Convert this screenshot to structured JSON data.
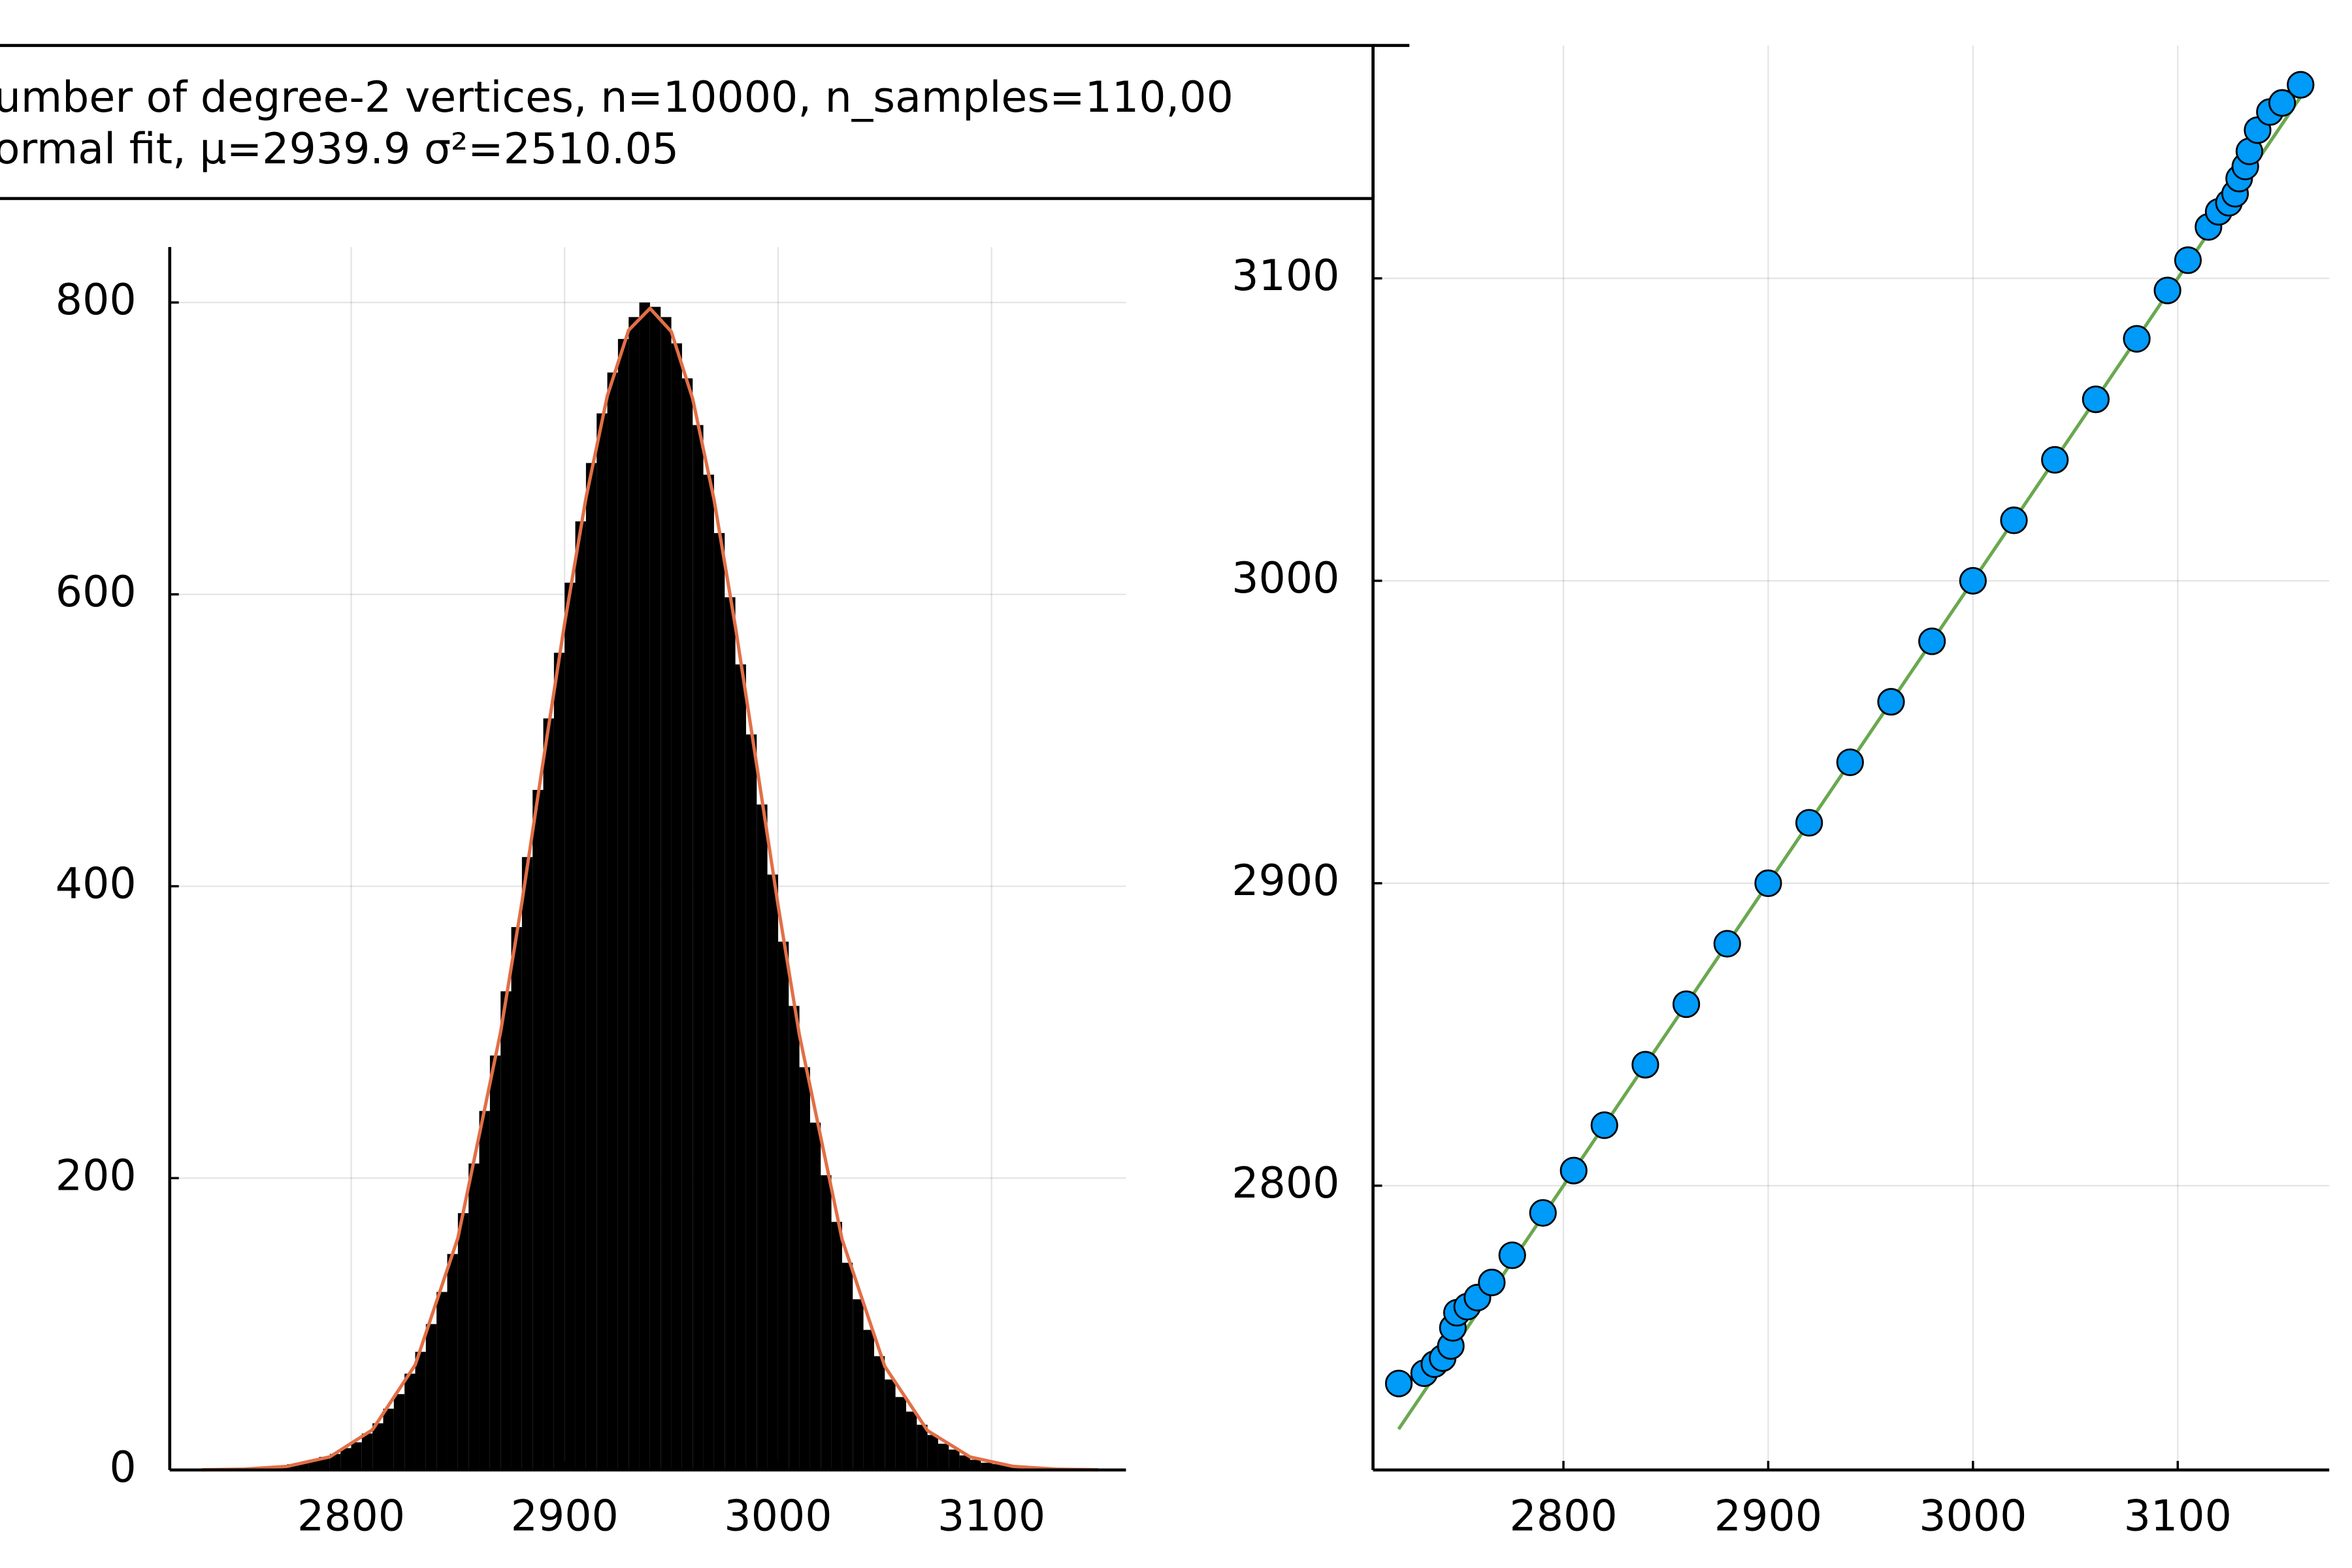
{
  "chart_data": [
    {
      "type": "histogram",
      "bins": [
        2735,
        2740,
        2745,
        2750,
        2755,
        2760,
        2765,
        2770,
        2775,
        2780,
        2785,
        2790,
        2795,
        2800,
        2805,
        2810,
        2815,
        2820,
        2825,
        2830,
        2835,
        2840,
        2845,
        2850,
        2855,
        2860,
        2865,
        2870,
        2875,
        2880,
        2885,
        2890,
        2895,
        2900,
        2905,
        2910,
        2915,
        2920,
        2925,
        2930,
        2935,
        2940,
        2945,
        2950,
        2955,
        2960,
        2965,
        2970,
        2975,
        2980,
        2985,
        2990,
        2995,
        3000,
        3005,
        3010,
        3015,
        3020,
        3025,
        3030,
        3035,
        3040,
        3045,
        3050,
        3055,
        3060,
        3065,
        3070,
        3075,
        3080,
        3085,
        3090,
        3095,
        3100,
        3105,
        3110,
        3115,
        3120,
        3125,
        3130,
        3135,
        3140,
        3145,
        3150
      ],
      "series": [
        {
          "name": "umber of degree-2 vertices, n=10000, n_samples=110,00",
          "color": "#000000",
          "values": [
            0,
            1,
            1,
            1,
            2,
            2,
            3,
            4,
            5,
            7,
            9,
            11,
            15,
            19,
            25,
            32,
            42,
            52,
            66,
            81,
            100,
            122,
            148,
            176,
            210,
            246,
            284,
            328,
            372,
            420,
            466,
            515,
            560,
            608,
            650,
            690,
            724,
            752,
            775,
            790,
            800,
            797,
            790,
            772,
            748,
            716,
            682,
            642,
            598,
            552,
            504,
            456,
            408,
            362,
            318,
            276,
            238,
            202,
            170,
            142,
            117,
            96,
            78,
            62,
            50,
            40,
            31,
            24,
            18,
            14,
            10,
            7,
            5,
            4,
            3,
            2,
            2,
            1,
            1,
            1,
            0,
            0,
            0
          ]
        },
        {
          "name": "ormal fit, μ=2939.9 σ²=2510.05",
          "type": "line",
          "color": "#e26f46",
          "x": [
            2730,
            2750,
            2770,
            2790,
            2810,
            2830,
            2850,
            2870,
            2880,
            2890,
            2900,
            2910,
            2920,
            2930,
            2940,
            2950,
            2960,
            2970,
            2980,
            2990,
            3000,
            3010,
            3030,
            3050,
            3070,
            3090,
            3110,
            3130,
            3150
          ],
          "values": [
            0.12,
            0.6,
            2.5,
            9,
            27.6,
            72,
            159,
            300,
            389,
            486,
            580,
            666,
            736,
            781,
            796,
            780,
            734,
            665,
            578,
            483,
            387,
            298,
            158,
            71,
            27,
            8.9,
            2.5,
            0.6,
            0.12
          ]
        }
      ],
      "xlim": [
        2715,
        3163
      ],
      "ylim": [
        0,
        838
      ],
      "xticks": [
        2800,
        2900,
        3000,
        3100
      ],
      "yticks": [
        0,
        200,
        400,
        600,
        800
      ],
      "grid": true
    },
    {
      "type": "scatter",
      "series": [
        {
          "color": "#009af9",
          "x": [
            2719.6,
            2732,
            2737,
            2741,
            2745,
            2746,
            2748,
            2753,
            2758,
            2765,
            2775,
            2790,
            2805,
            2820,
            2840,
            2860,
            2880,
            2900,
            2920,
            2940,
            2960,
            2980,
            3000,
            3020,
            3040,
            3060,
            3080,
            3095,
            3105,
            3115,
            3120,
            3125,
            3128,
            3130,
            3133,
            3135,
            3139,
            3145,
            3151,
            3160
          ],
          "values": [
            2734.6,
            2738,
            2741,
            2743,
            2747,
            2753,
            2758,
            2760,
            2763,
            2768,
            2777,
            2791,
            2805,
            2820,
            2840,
            2860,
            2880,
            2900,
            2920,
            2940,
            2960,
            2980,
            3000,
            3020,
            3040,
            3060,
            3080,
            3096,
            3106,
            3117,
            3122,
            3125,
            3128,
            3133,
            3137,
            3142,
            3149,
            3155,
            3158,
            3164
          ]
        },
        {
          "type": "line",
          "color": "#6aa84f",
          "x": [
            2719.5,
            3160
          ],
          "values": [
            2719.5,
            3160
          ]
        }
      ],
      "xlim": [
        2707,
        3174
      ],
      "ylim": [
        2706,
        3177
      ],
      "xticks": [
        2800,
        2900,
        3000,
        3100
      ],
      "yticks": [
        2800,
        2900,
        3000,
        3100
      ],
      "grid": true
    }
  ]
}
